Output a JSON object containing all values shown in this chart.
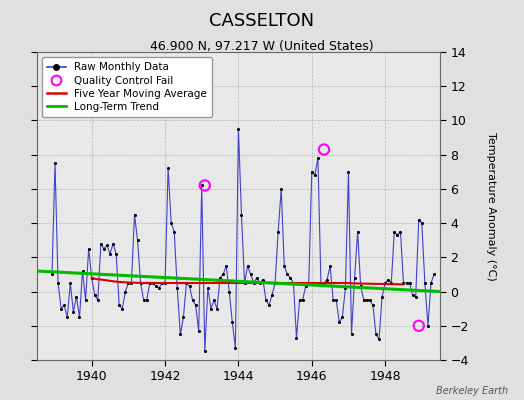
{
  "title": "CASSELTON",
  "subtitle": "46.900 N, 97.217 W (United States)",
  "ylabel": "Temperature Anomaly (°C)",
  "watermark": "Berkeley Earth",
  "xlim": [
    1938.5,
    1949.5
  ],
  "ylim": [
    -4,
    14
  ],
  "yticks": [
    -4,
    -2,
    0,
    2,
    4,
    6,
    8,
    10,
    12,
    14
  ],
  "xticks": [
    1940,
    1942,
    1944,
    1946,
    1948
  ],
  "bg_color": "#e0e0e0",
  "plot_bg_color": "#e8e8e8",
  "raw_monthly": {
    "x": [
      1938.917,
      1939.0,
      1939.083,
      1939.167,
      1939.25,
      1939.333,
      1939.417,
      1939.5,
      1939.583,
      1939.667,
      1939.75,
      1939.833,
      1939.917,
      1940.0,
      1940.083,
      1940.167,
      1940.25,
      1940.333,
      1940.417,
      1940.5,
      1940.583,
      1940.667,
      1940.75,
      1940.833,
      1940.917,
      1941.0,
      1941.083,
      1941.167,
      1941.25,
      1941.333,
      1941.417,
      1941.5,
      1941.583,
      1941.667,
      1941.75,
      1941.833,
      1941.917,
      1942.0,
      1942.083,
      1942.167,
      1942.25,
      1942.333,
      1942.417,
      1942.5,
      1942.583,
      1942.667,
      1942.75,
      1942.833,
      1942.917,
      1943.0,
      1943.083,
      1943.167,
      1943.25,
      1943.333,
      1943.417,
      1943.5,
      1943.583,
      1943.667,
      1943.75,
      1943.833,
      1943.917,
      1944.0,
      1944.083,
      1944.167,
      1944.25,
      1944.333,
      1944.417,
      1944.5,
      1944.583,
      1944.667,
      1944.75,
      1944.833,
      1944.917,
      1945.0,
      1945.083,
      1945.167,
      1945.25,
      1945.333,
      1945.417,
      1945.5,
      1945.583,
      1945.667,
      1945.75,
      1945.833,
      1945.917,
      1946.0,
      1946.083,
      1946.167,
      1946.25,
      1946.333,
      1946.417,
      1946.5,
      1946.583,
      1946.667,
      1946.75,
      1946.833,
      1946.917,
      1947.0,
      1947.083,
      1947.167,
      1947.25,
      1947.333,
      1947.417,
      1947.5,
      1947.583,
      1947.667,
      1947.75,
      1947.833,
      1947.917,
      1948.0,
      1948.083,
      1948.167,
      1948.25,
      1948.333,
      1948.417,
      1948.5,
      1948.583,
      1948.667,
      1948.75,
      1948.833,
      1948.917,
      1949.0,
      1949.083,
      1949.167,
      1949.25,
      1949.333
    ],
    "y": [
      1.0,
      7.5,
      0.5,
      -1.0,
      -0.8,
      -1.5,
      0.5,
      -1.2,
      -0.3,
      -1.5,
      1.2,
      -0.5,
      2.5,
      0.8,
      -0.2,
      -0.5,
      2.8,
      2.5,
      2.7,
      2.2,
      2.8,
      2.2,
      -0.8,
      -1.0,
      0.0,
      0.5,
      0.5,
      4.5,
      3.0,
      0.5,
      -0.5,
      -0.5,
      0.5,
      0.5,
      0.3,
      0.2,
      0.5,
      0.5,
      7.2,
      4.0,
      3.5,
      0.2,
      -2.5,
      -1.5,
      0.5,
      0.3,
      -0.5,
      -0.8,
      -2.3,
      6.2,
      -3.5,
      0.2,
      -1.0,
      -0.5,
      -1.0,
      0.8,
      1.0,
      1.5,
      0.0,
      -1.8,
      -3.3,
      9.5,
      4.5,
      0.5,
      1.5,
      1.0,
      0.5,
      0.8,
      0.5,
      0.7,
      -0.5,
      -0.8,
      -0.2,
      0.5,
      3.5,
      6.0,
      1.5,
      1.0,
      0.8,
      0.5,
      -2.7,
      -0.5,
      -0.5,
      0.3,
      0.5,
      7.0,
      6.8,
      7.8,
      0.5,
      0.5,
      0.7,
      1.5,
      -0.5,
      -0.5,
      -1.8,
      -1.5,
      0.2,
      7.0,
      -2.5,
      0.8,
      3.5,
      0.3,
      -0.5,
      -0.5,
      -0.5,
      -0.8,
      -2.5,
      -2.8,
      -0.3,
      0.5,
      0.7,
      0.5,
      3.5,
      3.3,
      3.5,
      0.5,
      0.5,
      0.5,
      -0.2,
      -0.3,
      4.2,
      4.0,
      0.5,
      -2.0,
      0.5,
      1.0
    ]
  },
  "qc_fail": {
    "x": [
      1943.083,
      1946.333,
      1948.917
    ],
    "y": [
      6.2,
      8.3,
      -2.0
    ]
  },
  "moving_avg": {
    "x": [
      1940.0,
      1940.083,
      1940.167,
      1940.25,
      1940.333,
      1940.417,
      1940.5,
      1940.583,
      1940.667,
      1940.75,
      1940.833,
      1940.917,
      1941.0,
      1941.083,
      1941.167,
      1941.25,
      1941.333,
      1941.417,
      1941.5,
      1941.583,
      1941.667,
      1941.75,
      1941.833,
      1941.917,
      1942.0,
      1942.083,
      1942.167,
      1942.25,
      1942.333,
      1942.417,
      1942.5,
      1942.583,
      1942.667,
      1942.75,
      1942.833,
      1942.917,
      1943.0,
      1943.083,
      1943.167,
      1943.25,
      1943.333,
      1943.417,
      1943.5,
      1943.583,
      1943.667,
      1943.75,
      1943.833,
      1943.917,
      1944.0,
      1944.083,
      1944.167,
      1944.25,
      1944.333,
      1944.417,
      1944.5,
      1944.583,
      1944.667,
      1944.75,
      1944.833,
      1944.917,
      1945.0,
      1945.083,
      1945.167,
      1945.25,
      1945.333,
      1945.417,
      1945.5,
      1945.583,
      1945.667,
      1945.75,
      1945.833,
      1945.917,
      1946.0,
      1946.083,
      1946.167,
      1946.25,
      1946.333,
      1946.417,
      1946.5,
      1946.583,
      1946.667,
      1946.75,
      1946.833,
      1946.917,
      1947.0,
      1947.083,
      1947.5,
      1948.0,
      1948.5
    ],
    "y": [
      0.8,
      0.75,
      0.72,
      0.7,
      0.68,
      0.65,
      0.63,
      0.6,
      0.58,
      0.56,
      0.55,
      0.54,
      0.53,
      0.52,
      0.52,
      0.51,
      0.51,
      0.5,
      0.5,
      0.5,
      0.5,
      0.5,
      0.5,
      0.5,
      0.5,
      0.5,
      0.5,
      0.5,
      0.5,
      0.5,
      0.5,
      0.5,
      0.5,
      0.5,
      0.5,
      0.5,
      0.5,
      0.5,
      0.5,
      0.5,
      0.5,
      0.5,
      0.5,
      0.5,
      0.5,
      0.5,
      0.5,
      0.5,
      0.5,
      0.5,
      0.5,
      0.5,
      0.5,
      0.5,
      0.5,
      0.5,
      0.5,
      0.5,
      0.5,
      0.5,
      0.5,
      0.5,
      0.5,
      0.5,
      0.5,
      0.5,
      0.5,
      0.5,
      0.5,
      0.5,
      0.5,
      0.5,
      0.5,
      0.5,
      0.5,
      0.5,
      0.5,
      0.5,
      0.5,
      0.5,
      0.5,
      0.5,
      0.5,
      0.5,
      0.5,
      0.48,
      0.46,
      0.44,
      0.42
    ]
  },
  "trend": {
    "x": [
      1938.5,
      1949.5
    ],
    "y": [
      1.2,
      0.0
    ]
  },
  "raw_color": "#4040cc",
  "raw_marker_color": "#000000",
  "qc_color": "#ff00ff",
  "moving_avg_color": "#dd0000",
  "trend_color": "#00bb00",
  "legend_bg": "#ffffff"
}
